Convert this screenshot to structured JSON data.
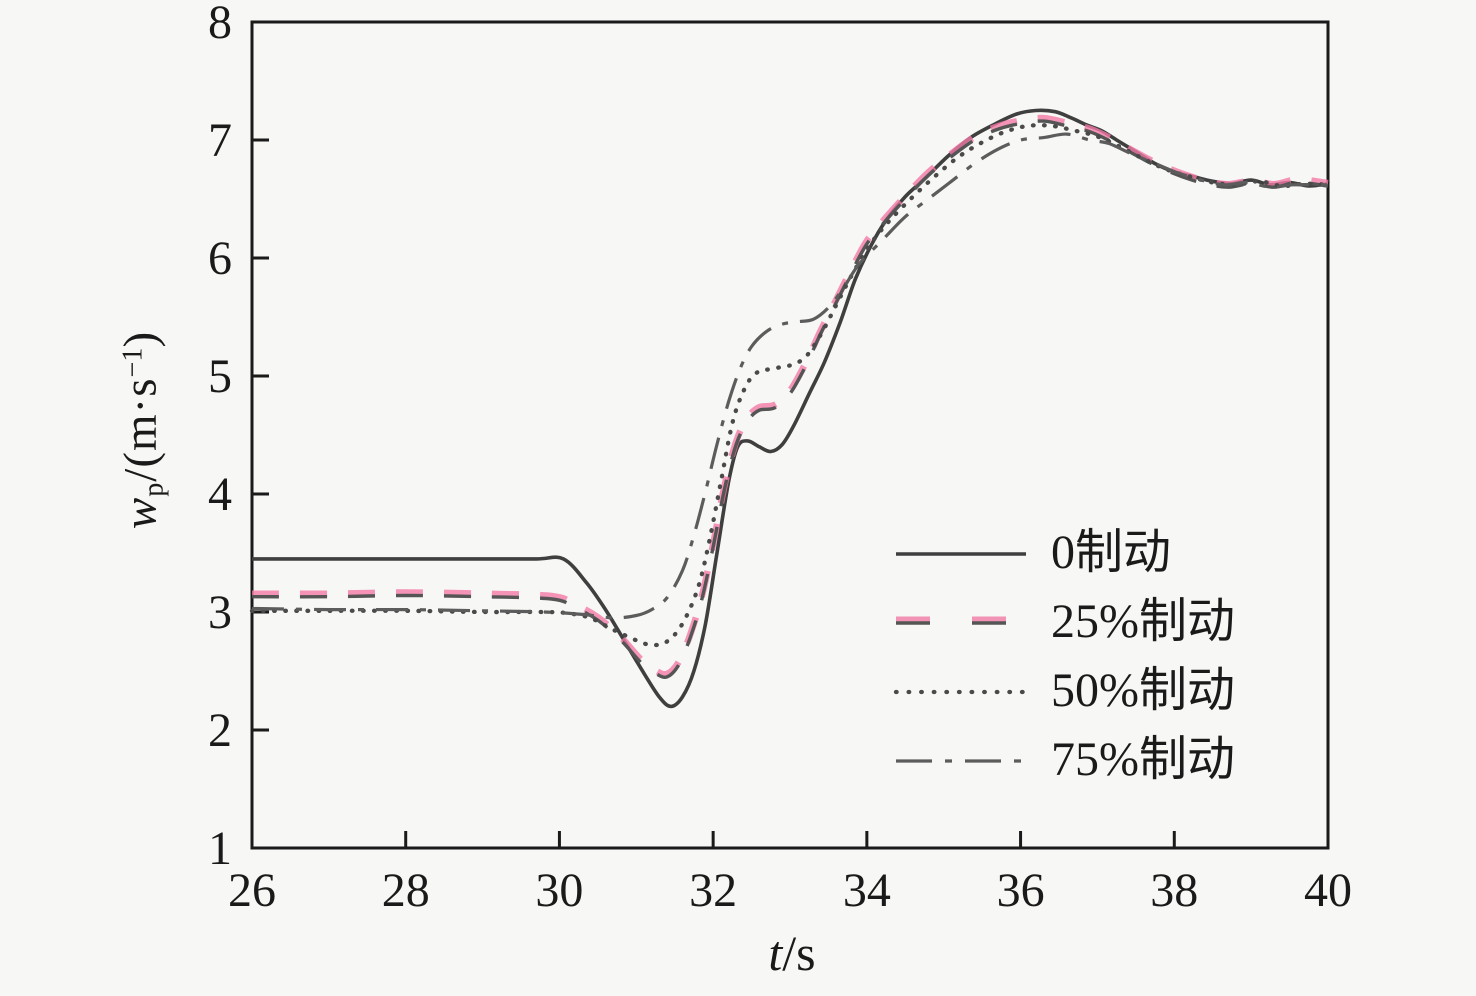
{
  "figure": {
    "background_color": "#f7f7f5",
    "axis_color": "#1a1a1a",
    "text_color": "#1a1a1a"
  },
  "chart_data": {
    "type": "line",
    "title": "",
    "xlabel_parts": {
      "var": "t",
      "rest": "/s"
    },
    "ylabel_parts": {
      "var": "w",
      "sub": "p",
      "mid": "/(m·s",
      "sup": "−1",
      "end": ")"
    },
    "xlim": [
      26,
      40
    ],
    "ylim": [
      1,
      8
    ],
    "x_ticks": [
      26,
      28,
      30,
      32,
      34,
      36,
      38,
      40
    ],
    "y_ticks": [
      1,
      2,
      3,
      4,
      5,
      6,
      7,
      8
    ],
    "grid": false,
    "legend_position": "inside lower-right",
    "series": [
      {
        "name": "0制动",
        "style": "solid",
        "color": "#3f3f3f",
        "points": [
          [
            26,
            3.45
          ],
          [
            27,
            3.45
          ],
          [
            28,
            3.45
          ],
          [
            29,
            3.45
          ],
          [
            29.7,
            3.45
          ],
          [
            30.05,
            3.45
          ],
          [
            30.35,
            3.25
          ],
          [
            30.6,
            3.02
          ],
          [
            30.85,
            2.75
          ],
          [
            31.1,
            2.48
          ],
          [
            31.3,
            2.28
          ],
          [
            31.45,
            2.2
          ],
          [
            31.6,
            2.28
          ],
          [
            31.75,
            2.5
          ],
          [
            31.9,
            2.9
          ],
          [
            32.05,
            3.5
          ],
          [
            32.2,
            4.1
          ],
          [
            32.32,
            4.4
          ],
          [
            32.45,
            4.45
          ],
          [
            32.6,
            4.4
          ],
          [
            32.75,
            4.36
          ],
          [
            32.9,
            4.42
          ],
          [
            33.05,
            4.58
          ],
          [
            33.25,
            4.85
          ],
          [
            33.45,
            5.12
          ],
          [
            33.65,
            5.45
          ],
          [
            33.85,
            5.82
          ],
          [
            34.05,
            6.1
          ],
          [
            34.25,
            6.32
          ],
          [
            34.5,
            6.52
          ],
          [
            34.75,
            6.67
          ],
          [
            35.05,
            6.86
          ],
          [
            35.35,
            7.02
          ],
          [
            35.65,
            7.13
          ],
          [
            35.95,
            7.22
          ],
          [
            36.2,
            7.25
          ],
          [
            36.45,
            7.24
          ],
          [
            36.65,
            7.19
          ],
          [
            36.85,
            7.13
          ],
          [
            37.05,
            7.08
          ],
          [
            37.25,
            7.0
          ],
          [
            37.5,
            6.9
          ],
          [
            37.75,
            6.8
          ],
          [
            38.0,
            6.73
          ],
          [
            38.25,
            6.69
          ],
          [
            38.5,
            6.65
          ],
          [
            38.75,
            6.63
          ],
          [
            39.0,
            6.66
          ],
          [
            39.25,
            6.62
          ],
          [
            39.5,
            6.64
          ],
          [
            39.75,
            6.61
          ],
          [
            40,
            6.63
          ]
        ]
      },
      {
        "name": "25%制动",
        "style": "dashed",
        "color": "#555555",
        "accent": "#f279a6",
        "points": [
          [
            26,
            3.13
          ],
          [
            27,
            3.13
          ],
          [
            28,
            3.14
          ],
          [
            29,
            3.13
          ],
          [
            29.9,
            3.11
          ],
          [
            30.2,
            3.04
          ],
          [
            30.5,
            2.93
          ],
          [
            30.8,
            2.76
          ],
          [
            31.05,
            2.58
          ],
          [
            31.25,
            2.48
          ],
          [
            31.4,
            2.45
          ],
          [
            31.55,
            2.55
          ],
          [
            31.7,
            2.78
          ],
          [
            31.85,
            3.1
          ],
          [
            32.0,
            3.55
          ],
          [
            32.15,
            4.05
          ],
          [
            32.3,
            4.42
          ],
          [
            32.45,
            4.62
          ],
          [
            32.6,
            4.71
          ],
          [
            32.8,
            4.73
          ],
          [
            33.0,
            4.85
          ],
          [
            33.2,
            5.08
          ],
          [
            33.4,
            5.36
          ],
          [
            33.6,
            5.62
          ],
          [
            33.8,
            5.88
          ],
          [
            34.0,
            6.12
          ],
          [
            34.25,
            6.32
          ],
          [
            34.5,
            6.5
          ],
          [
            34.8,
            6.7
          ],
          [
            35.1,
            6.86
          ],
          [
            35.4,
            7.0
          ],
          [
            35.7,
            7.09
          ],
          [
            36.0,
            7.14
          ],
          [
            36.3,
            7.16
          ],
          [
            36.6,
            7.12
          ],
          [
            36.9,
            7.07
          ],
          [
            37.2,
            6.98
          ],
          [
            37.5,
            6.87
          ],
          [
            37.8,
            6.77
          ],
          [
            38.1,
            6.69
          ],
          [
            38.4,
            6.63
          ],
          [
            38.7,
            6.6
          ],
          [
            39.0,
            6.63
          ],
          [
            39.3,
            6.6
          ],
          [
            39.6,
            6.64
          ],
          [
            40,
            6.61
          ]
        ]
      },
      {
        "name": "50%制动",
        "style": "dotted",
        "color": "#4a4a4a",
        "points": [
          [
            26,
            3.01
          ],
          [
            27,
            3.01
          ],
          [
            28,
            3.01
          ],
          [
            29,
            3.0
          ],
          [
            29.8,
            3.0
          ],
          [
            30.1,
            2.99
          ],
          [
            30.4,
            2.95
          ],
          [
            30.7,
            2.85
          ],
          [
            31.0,
            2.76
          ],
          [
            31.2,
            2.72
          ],
          [
            31.4,
            2.75
          ],
          [
            31.6,
            2.9
          ],
          [
            31.8,
            3.2
          ],
          [
            31.95,
            3.6
          ],
          [
            32.1,
            4.1
          ],
          [
            32.25,
            4.6
          ],
          [
            32.4,
            4.88
          ],
          [
            32.55,
            5.02
          ],
          [
            32.75,
            5.06
          ],
          [
            33.0,
            5.09
          ],
          [
            33.2,
            5.16
          ],
          [
            33.4,
            5.35
          ],
          [
            33.6,
            5.6
          ],
          [
            33.8,
            5.85
          ],
          [
            34.05,
            6.12
          ],
          [
            34.3,
            6.32
          ],
          [
            34.6,
            6.52
          ],
          [
            34.9,
            6.7
          ],
          [
            35.2,
            6.86
          ],
          [
            35.5,
            6.98
          ],
          [
            35.8,
            7.07
          ],
          [
            36.1,
            7.12
          ],
          [
            36.4,
            7.12
          ],
          [
            36.7,
            7.08
          ],
          [
            37.0,
            7.03
          ],
          [
            37.3,
            6.94
          ],
          [
            37.6,
            6.84
          ],
          [
            37.9,
            6.75
          ],
          [
            38.2,
            6.69
          ],
          [
            38.5,
            6.64
          ],
          [
            38.8,
            6.62
          ],
          [
            39.1,
            6.65
          ],
          [
            39.4,
            6.61
          ],
          [
            39.7,
            6.63
          ],
          [
            40,
            6.62
          ]
        ]
      },
      {
        "name": "75%制动",
        "style": "dashdot",
        "color": "#5c5c5c",
        "points": [
          [
            26,
            3.03
          ],
          [
            27,
            3.02
          ],
          [
            28,
            3.02
          ],
          [
            29,
            3.01
          ],
          [
            29.8,
            3.0
          ],
          [
            30.3,
            2.98
          ],
          [
            30.7,
            2.95
          ],
          [
            31.0,
            2.97
          ],
          [
            31.2,
            3.02
          ],
          [
            31.4,
            3.12
          ],
          [
            31.6,
            3.35
          ],
          [
            31.75,
            3.65
          ],
          [
            31.9,
            4.02
          ],
          [
            32.05,
            4.42
          ],
          [
            32.2,
            4.78
          ],
          [
            32.35,
            5.06
          ],
          [
            32.5,
            5.25
          ],
          [
            32.7,
            5.38
          ],
          [
            32.9,
            5.44
          ],
          [
            33.1,
            5.46
          ],
          [
            33.3,
            5.48
          ],
          [
            33.5,
            5.58
          ],
          [
            33.7,
            5.75
          ],
          [
            33.9,
            5.95
          ],
          [
            34.2,
            6.15
          ],
          [
            34.5,
            6.35
          ],
          [
            34.8,
            6.5
          ],
          [
            35.1,
            6.65
          ],
          [
            35.4,
            6.8
          ],
          [
            35.7,
            6.92
          ],
          [
            36.0,
            7.0
          ],
          [
            36.3,
            7.02
          ],
          [
            36.6,
            7.05
          ],
          [
            36.9,
            7.0
          ],
          [
            37.15,
            6.97
          ],
          [
            37.45,
            6.88
          ],
          [
            37.75,
            6.8
          ],
          [
            38.05,
            6.72
          ],
          [
            38.35,
            6.66
          ],
          [
            38.65,
            6.62
          ],
          [
            38.95,
            6.64
          ],
          [
            39.25,
            6.6
          ],
          [
            39.55,
            6.62
          ],
          [
            40,
            6.62
          ]
        ]
      }
    ]
  }
}
